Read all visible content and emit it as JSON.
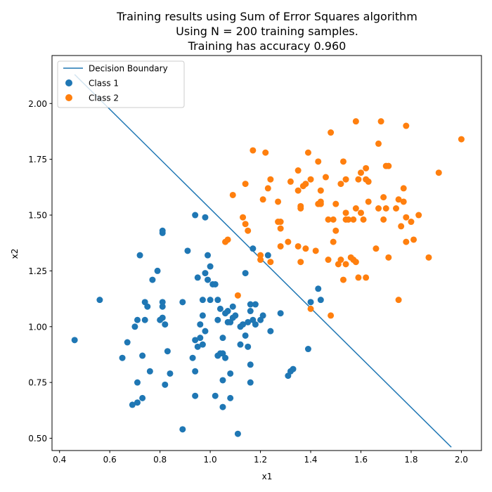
{
  "chart_data": {
    "type": "scatter",
    "title_lines": [
      "Training results using Sum of Error Squares algorithm",
      "Using N = 200 training samples.",
      "Training has accuracy 0.960"
    ],
    "xlabel": "x1",
    "ylabel": "x2",
    "xlim": [
      0.37,
      2.08
    ],
    "ylim": [
      0.445,
      2.215
    ],
    "xticks": [
      0.4,
      0.6,
      0.8,
      1.0,
      1.2,
      1.4,
      1.6,
      1.8,
      2.0
    ],
    "xtick_labels": [
      "0.4",
      "0.6",
      "0.8",
      "1.0",
      "1.2",
      "1.4",
      "1.6",
      "1.8",
      "2.0"
    ],
    "yticks": [
      0.5,
      0.75,
      1.0,
      1.25,
      1.5,
      1.75,
      2.0
    ],
    "ytick_labels": [
      "0.50",
      "0.75",
      "1.00",
      "1.25",
      "1.50",
      "1.75",
      "2.00"
    ],
    "grid": false,
    "legend_position": "top-left",
    "decision_boundary": {
      "name": "Decision Boundary",
      "color": "#1f77b4",
      "x": [
        0.46,
        1.96
      ],
      "y": [
        2.13,
        0.46
      ]
    },
    "series": [
      {
        "name": "Class 1",
        "color": "#1f77b4",
        "points": [
          [
            0.46,
            0.94
          ],
          [
            0.56,
            1.12
          ],
          [
            0.65,
            0.86
          ],
          [
            0.67,
            0.93
          ],
          [
            0.69,
            0.65
          ],
          [
            0.7,
            1.0
          ],
          [
            0.71,
            0.66
          ],
          [
            0.71,
            0.75
          ],
          [
            0.71,
            1.03
          ],
          [
            0.72,
            1.32
          ],
          [
            0.73,
            0.87
          ],
          [
            0.73,
            0.68
          ],
          [
            0.74,
            1.03
          ],
          [
            0.74,
            1.11
          ],
          [
            0.75,
            1.09
          ],
          [
            0.76,
            0.8
          ],
          [
            0.77,
            1.21
          ],
          [
            0.79,
            1.25
          ],
          [
            0.8,
            1.03
          ],
          [
            0.81,
            1.04
          ],
          [
            0.81,
            1.09
          ],
          [
            0.81,
            1.11
          ],
          [
            0.81,
            1.42
          ],
          [
            0.81,
            1.43
          ],
          [
            0.82,
            0.74
          ],
          [
            0.82,
            1.01
          ],
          [
            0.83,
            0.89
          ],
          [
            0.84,
            0.79
          ],
          [
            0.89,
            1.11
          ],
          [
            0.89,
            0.54
          ],
          [
            0.91,
            1.34
          ],
          [
            0.93,
            0.86
          ],
          [
            0.94,
            0.69
          ],
          [
            0.94,
            0.8
          ],
          [
            0.94,
            0.94
          ],
          [
            0.94,
            1.5
          ],
          [
            0.95,
            0.91
          ],
          [
            0.95,
            1.22
          ],
          [
            0.96,
            0.95
          ],
          [
            0.96,
            1.01
          ],
          [
            0.97,
            0.92
          ],
          [
            0.97,
            1.05
          ],
          [
            0.97,
            1.12
          ],
          [
            0.98,
            0.98
          ],
          [
            0.98,
            1.24
          ],
          [
            0.98,
            1.49
          ],
          [
            0.99,
            1.21
          ],
          [
            0.99,
            1.32
          ],
          [
            1.0,
            1.12
          ],
          [
            1.0,
            1.27
          ],
          [
            1.01,
            1.19
          ],
          [
            1.02,
            1.19
          ],
          [
            1.02,
            0.69
          ],
          [
            1.03,
            0.87
          ],
          [
            1.03,
            1.03
          ],
          [
            1.03,
            1.12
          ],
          [
            1.04,
            0.88
          ],
          [
            1.04,
            1.08
          ],
          [
            1.05,
            0.64
          ],
          [
            1.05,
            0.76
          ],
          [
            1.05,
            0.88
          ],
          [
            1.05,
            0.95
          ],
          [
            1.06,
            1.06
          ],
          [
            1.06,
            0.86
          ],
          [
            1.07,
            1.02
          ],
          [
            1.07,
            1.07
          ],
          [
            1.08,
            0.68
          ],
          [
            1.08,
            0.79
          ],
          [
            1.08,
            1.02
          ],
          [
            1.09,
            1.04
          ],
          [
            1.09,
            1.09
          ],
          [
            1.1,
            1.05
          ],
          [
            1.11,
            0.52
          ],
          [
            1.12,
            0.92
          ],
          [
            1.12,
            1.0
          ],
          [
            1.13,
            1.01
          ],
          [
            1.14,
            0.96
          ],
          [
            1.14,
            1.24
          ],
          [
            1.15,
            0.91
          ],
          [
            1.15,
            1.02
          ],
          [
            1.16,
            0.75
          ],
          [
            1.16,
            0.83
          ],
          [
            1.16,
            1.07
          ],
          [
            1.16,
            1.1
          ],
          [
            1.17,
            1.35
          ],
          [
            1.17,
            1.03
          ],
          [
            1.18,
            1.01
          ],
          [
            1.18,
            1.1
          ],
          [
            1.2,
            1.03
          ],
          [
            1.21,
            1.05
          ],
          [
            1.23,
            1.32
          ],
          [
            1.24,
            0.98
          ],
          [
            1.28,
            1.06
          ],
          [
            1.31,
            0.78
          ],
          [
            1.32,
            0.8
          ],
          [
            1.33,
            0.81
          ],
          [
            1.39,
            0.9
          ],
          [
            1.4,
            1.11
          ],
          [
            1.43,
            1.17
          ],
          [
            1.44,
            1.12
          ]
        ]
      },
      {
        "name": "Class 2",
        "color": "#ff7f0e",
        "points": [
          [
            1.06,
            1.38
          ],
          [
            1.07,
            1.39
          ],
          [
            1.09,
            1.59
          ],
          [
            1.11,
            1.14
          ],
          [
            1.13,
            1.49
          ],
          [
            1.14,
            1.46
          ],
          [
            1.14,
            1.64
          ],
          [
            1.15,
            1.43
          ],
          [
            1.17,
            1.79
          ],
          [
            1.2,
            1.32
          ],
          [
            1.2,
            1.3
          ],
          [
            1.21,
            1.57
          ],
          [
            1.22,
            1.78
          ],
          [
            1.23,
            1.62
          ],
          [
            1.24,
            1.66
          ],
          [
            1.24,
            1.29
          ],
          [
            1.27,
            1.56
          ],
          [
            1.27,
            1.47
          ],
          [
            1.28,
            1.36
          ],
          [
            1.28,
            1.44
          ],
          [
            1.28,
            1.47
          ],
          [
            1.31,
            1.38
          ],
          [
            1.32,
            1.65
          ],
          [
            1.35,
            1.61
          ],
          [
            1.35,
            1.36
          ],
          [
            1.35,
            1.7
          ],
          [
            1.36,
            1.54
          ],
          [
            1.36,
            1.29
          ],
          [
            1.36,
            1.53
          ],
          [
            1.37,
            1.63
          ],
          [
            1.38,
            1.64
          ],
          [
            1.38,
            1.35
          ],
          [
            1.39,
            1.78
          ],
          [
            1.4,
            1.66
          ],
          [
            1.4,
            1.08
          ],
          [
            1.42,
            1.34
          ],
          [
            1.43,
            1.55
          ],
          [
            1.43,
            1.74
          ],
          [
            1.44,
            1.61
          ],
          [
            1.44,
            1.55
          ],
          [
            1.44,
            1.56
          ],
          [
            1.46,
            1.67
          ],
          [
            1.47,
            1.48
          ],
          [
            1.47,
            1.3
          ],
          [
            1.48,
            1.87
          ],
          [
            1.48,
            1.05
          ],
          [
            1.49,
            1.38
          ],
          [
            1.49,
            1.48
          ],
          [
            1.5,
            1.55
          ],
          [
            1.5,
            1.43
          ],
          [
            1.51,
            1.28
          ],
          [
            1.52,
            1.64
          ],
          [
            1.52,
            1.3
          ],
          [
            1.53,
            1.74
          ],
          [
            1.53,
            1.21
          ],
          [
            1.54,
            1.51
          ],
          [
            1.54,
            1.48
          ],
          [
            1.54,
            1.66
          ],
          [
            1.54,
            1.28
          ],
          [
            1.55,
            1.48
          ],
          [
            1.56,
            1.31
          ],
          [
            1.57,
            1.3
          ],
          [
            1.57,
            1.48
          ],
          [
            1.58,
            1.92
          ],
          [
            1.58,
            1.29
          ],
          [
            1.58,
            1.53
          ],
          [
            1.59,
            1.22
          ],
          [
            1.59,
            1.66
          ],
          [
            1.6,
            1.69
          ],
          [
            1.6,
            1.51
          ],
          [
            1.61,
            1.48
          ],
          [
            1.62,
            1.22
          ],
          [
            1.62,
            1.66
          ],
          [
            1.62,
            1.71
          ],
          [
            1.63,
            1.56
          ],
          [
            1.63,
            1.65
          ],
          [
            1.66,
            1.35
          ],
          [
            1.67,
            1.82
          ],
          [
            1.67,
            1.53
          ],
          [
            1.68,
            1.92
          ],
          [
            1.69,
            1.58
          ],
          [
            1.69,
            1.48
          ],
          [
            1.7,
            1.72
          ],
          [
            1.7,
            1.53
          ],
          [
            1.71,
            1.72
          ],
          [
            1.71,
            1.31
          ],
          [
            1.74,
            1.53
          ],
          [
            1.75,
            1.57
          ],
          [
            1.75,
            1.12
          ],
          [
            1.76,
            1.45
          ],
          [
            1.77,
            1.62
          ],
          [
            1.77,
            1.56
          ],
          [
            1.78,
            1.9
          ],
          [
            1.78,
            1.49
          ],
          [
            1.78,
            1.38
          ],
          [
            1.8,
            1.47
          ],
          [
            1.81,
            1.39
          ],
          [
            1.83,
            1.5
          ],
          [
            1.87,
            1.31
          ],
          [
            1.91,
            1.69
          ],
          [
            2.0,
            1.84
          ]
        ]
      }
    ]
  }
}
